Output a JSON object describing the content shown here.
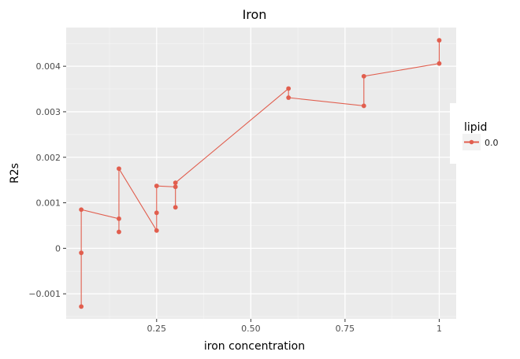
{
  "chart_data": {
    "type": "line",
    "title": "Iron",
    "xlabel": "iron concentration",
    "ylabel": "R2s",
    "xlim": [
      0.01,
      1.045
    ],
    "ylim": [
      -0.00155,
      0.00485
    ],
    "x_ticks": [
      0.25,
      0.5,
      0.75,
      1.0
    ],
    "x_tick_labels": [
      "0.25",
      "0.50",
      "0.75",
      "1"
    ],
    "y_ticks": [
      -0.001,
      0,
      0.001,
      0.002,
      0.003,
      0.004
    ],
    "y_tick_labels": [
      "−0.001",
      "0",
      "0.001",
      "0.002",
      "0.003",
      "0.004"
    ],
    "grid": true,
    "legend": {
      "title": "lipid",
      "placement": "right",
      "entries": [
        "0.0"
      ]
    },
    "series": [
      {
        "name": "0.0",
        "color": "#e15e4e",
        "points": [
          {
            "x": 0.05,
            "y": -0.00128
          },
          {
            "x": 0.05,
            "y": -0.0001
          },
          {
            "x": 0.05,
            "y": 0.00085
          },
          {
            "x": 0.15,
            "y": 0.00065
          },
          {
            "x": 0.15,
            "y": 0.00036
          },
          {
            "x": 0.15,
            "y": 0.00175
          },
          {
            "x": 0.25,
            "y": 0.00039
          },
          {
            "x": 0.25,
            "y": 0.00078
          },
          {
            "x": 0.25,
            "y": 0.00137
          },
          {
            "x": 0.3,
            "y": 0.00135
          },
          {
            "x": 0.3,
            "y": 0.0009
          },
          {
            "x": 0.3,
            "y": 0.00144
          },
          {
            "x": 0.6,
            "y": 0.00351
          },
          {
            "x": 0.6,
            "y": 0.00331
          },
          {
            "x": 0.8,
            "y": 0.00313
          },
          {
            "x": 0.8,
            "y": 0.00378
          },
          {
            "x": 1.0,
            "y": 0.00406
          },
          {
            "x": 1.0,
            "y": 0.00457
          }
        ]
      }
    ]
  },
  "colors": {
    "panel_background": "#ebebeb",
    "grid_major": "#ffffff",
    "series_line": "#e15e4e",
    "text": "#000000",
    "tick_text": "#4d4d4d"
  }
}
